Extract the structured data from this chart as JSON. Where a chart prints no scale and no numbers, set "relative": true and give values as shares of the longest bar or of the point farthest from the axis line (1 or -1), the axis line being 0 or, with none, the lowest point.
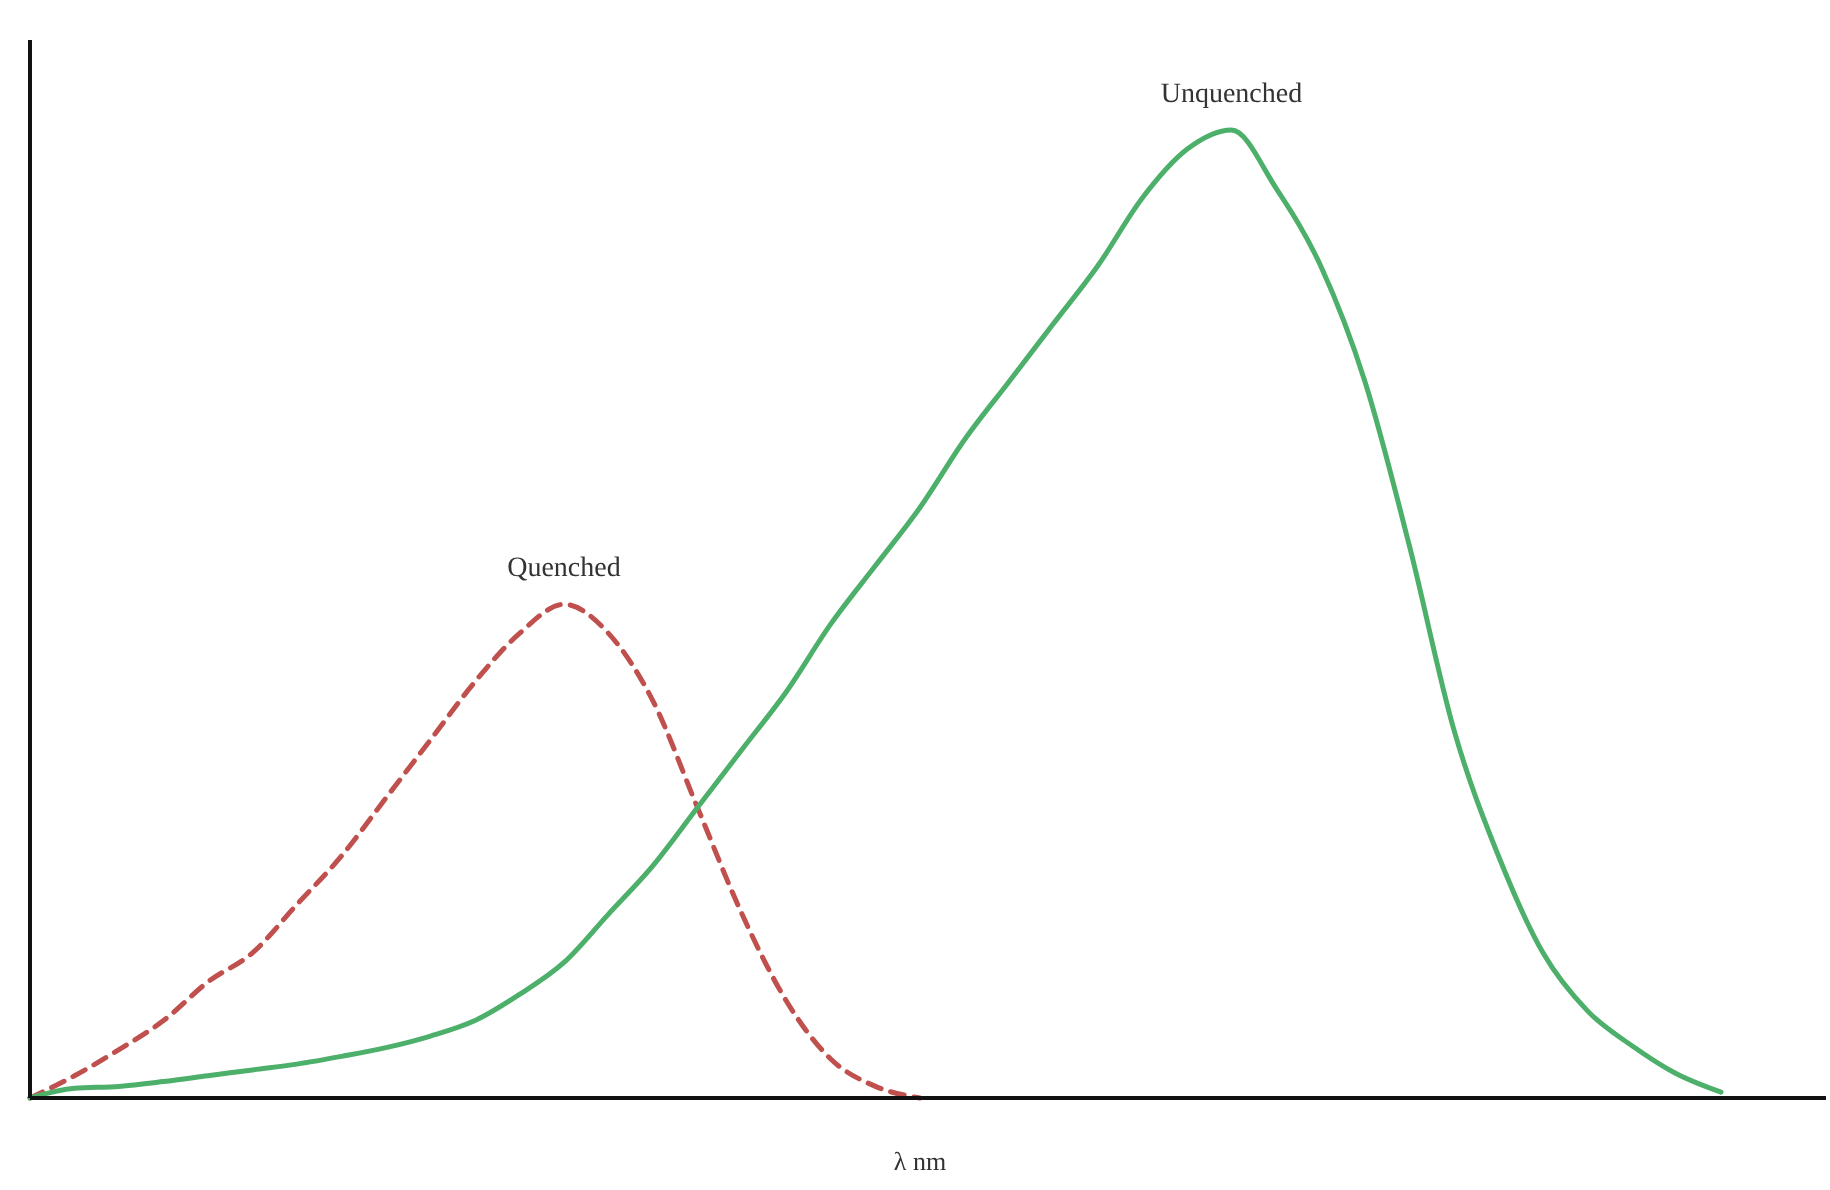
{
  "chart_data": {
    "type": "line",
    "relative": true,
    "xlabel": "λ nm",
    "categories": [
      null,
      null,
      null,
      null,
      null,
      null,
      null,
      null,
      null,
      null,
      null,
      null,
      null,
      null,
      null,
      null,
      null,
      null,
      null,
      null,
      null,
      null,
      null,
      null,
      null,
      null,
      null,
      null,
      null,
      null,
      null,
      null,
      null,
      null,
      null,
      null,
      null,
      null,
      null,
      null,
      null
    ],
    "series": [
      {
        "name": "Quenched",
        "color": "#c0504d",
        "line_style": "dashed",
        "values": [
          0,
          0.023,
          0.05,
          0.08,
          0.12,
          0.15,
          0.2,
          0.25,
          0.31,
          0.37,
          0.43,
          0.48,
          0.51,
          0.48,
          0.41,
          0.3,
          0.19,
          0.1,
          0.04,
          0.012,
          0,
          null,
          null,
          null,
          null,
          null,
          null,
          null,
          null,
          null,
          null,
          null,
          null,
          null,
          null,
          null,
          null,
          null,
          null,
          null,
          null
        ]
      },
      {
        "name": "Unquenched",
        "color": "#4caf6a",
        "line_style": "solid",
        "values": [
          0,
          0.01,
          0.012,
          0.017,
          0.023,
          0.029,
          0.035,
          0.043,
          0.052,
          0.064,
          0.08,
          0.107,
          0.14,
          0.19,
          0.24,
          0.3,
          0.36,
          0.42,
          0.49,
          0.55,
          0.61,
          0.68,
          0.74,
          0.8,
          0.86,
          0.93,
          0.98,
          1,
          0.94,
          0.86,
          0.74,
          0.57,
          0.38,
          0.25,
          0.15,
          0.09,
          0.054,
          0.025,
          0.006,
          null,
          null
        ]
      }
    ]
  }
}
